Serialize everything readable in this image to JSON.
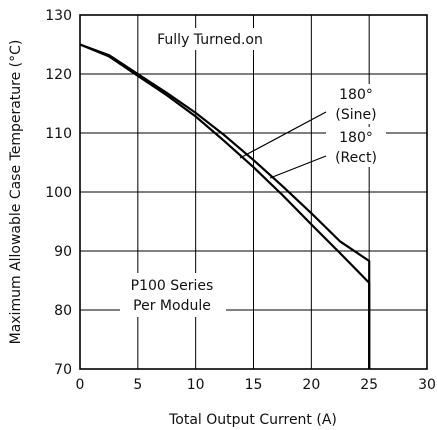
{
  "chart_data": {
    "type": "line",
    "title": "",
    "xlabel": "Total Output Current (A)",
    "ylabel": "Maximum Allowable Case Temperature (°C)",
    "xlim": [
      0,
      30
    ],
    "ylim": [
      70,
      130
    ],
    "xticks": [
      0,
      5,
      10,
      15,
      20,
      25,
      30
    ],
    "yticks": [
      70,
      80,
      90,
      100,
      110,
      120,
      130
    ],
    "grid": true,
    "series": [
      {
        "name": "180° (Sine)",
        "x": [
          0,
          2.5,
          5,
          7.5,
          10,
          12.5,
          15,
          17.5,
          20,
          22.5,
          25,
          25
        ],
        "y": [
          125,
          123,
          119.7,
          116.4,
          112.8,
          108.6,
          104.2,
          99.5,
          94.5,
          89.6,
          84.6,
          70
        ]
      },
      {
        "name": "180° (Rect)",
        "x": [
          0,
          2.5,
          5,
          7.5,
          10,
          12.5,
          15,
          17.5,
          20,
          22.5,
          25,
          25
        ],
        "y": [
          125,
          123.2,
          120,
          116.8,
          113.4,
          109.6,
          105.4,
          101,
          96.4,
          91.6,
          88.3,
          70
        ]
      }
    ],
    "annotations": {
      "condition": "Fully Turned.on",
      "sine_label_1": "180°",
      "sine_label_2": "(Sine)",
      "rect_label_1": "180°",
      "rect_label_2": "(Rect)",
      "series_label": "P100 Series",
      "module_label": "Per Module"
    }
  }
}
